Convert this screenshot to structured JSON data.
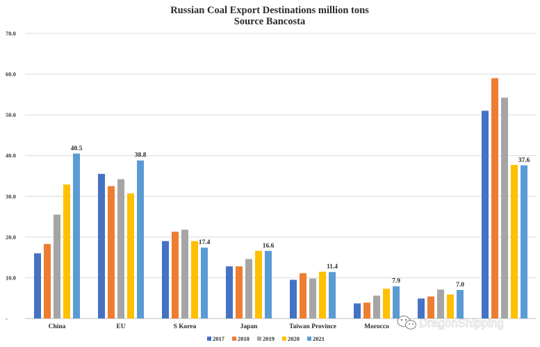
{
  "chart_data": {
    "type": "bar",
    "title": "Russian Coal Export Destinations million tons",
    "subtitle": "Source Bancosta",
    "categories": [
      "China",
      "EU",
      "S Korea",
      "Japan",
      "Taiwan Province",
      "Morocco",
      "",
      ""
    ],
    "ylim": [
      0,
      70
    ],
    "yticks": [
      "-",
      "10.0",
      "20.0",
      "30.0",
      "40.0",
      "50.0",
      "60.0",
      "70.0"
    ],
    "grid": true,
    "legend_position": "bottom",
    "series": [
      {
        "name": "2017",
        "color": "#4472C4",
        "values": [
          16.0,
          35.5,
          19.0,
          12.8,
          9.5,
          3.7,
          4.9,
          51.0
        ]
      },
      {
        "name": "2018",
        "color": "#ED7D31",
        "values": [
          18.3,
          32.5,
          21.3,
          12.8,
          11.1,
          3.9,
          5.4,
          59.0
        ]
      },
      {
        "name": "2019",
        "color": "#A5A5A5",
        "values": [
          25.5,
          34.2,
          21.8,
          14.6,
          9.8,
          5.6,
          7.1,
          54.2
        ]
      },
      {
        "name": "2020",
        "color": "#FFC000",
        "values": [
          32.9,
          30.7,
          19.0,
          16.6,
          11.5,
          7.3,
          5.9,
          37.7
        ]
      },
      {
        "name": "2021",
        "color": "#5B9BD5",
        "values": [
          40.5,
          38.8,
          17.4,
          16.6,
          11.4,
          7.9,
          7.0,
          37.6
        ]
      }
    ],
    "data_labels": [
      "40.5",
      "38.8",
      "17.4",
      "16.6",
      "11.4",
      "7.9",
      "7.0",
      "37.6"
    ]
  },
  "watermark": {
    "text": "DragonShipping",
    "icon": "wechat-icon"
  }
}
